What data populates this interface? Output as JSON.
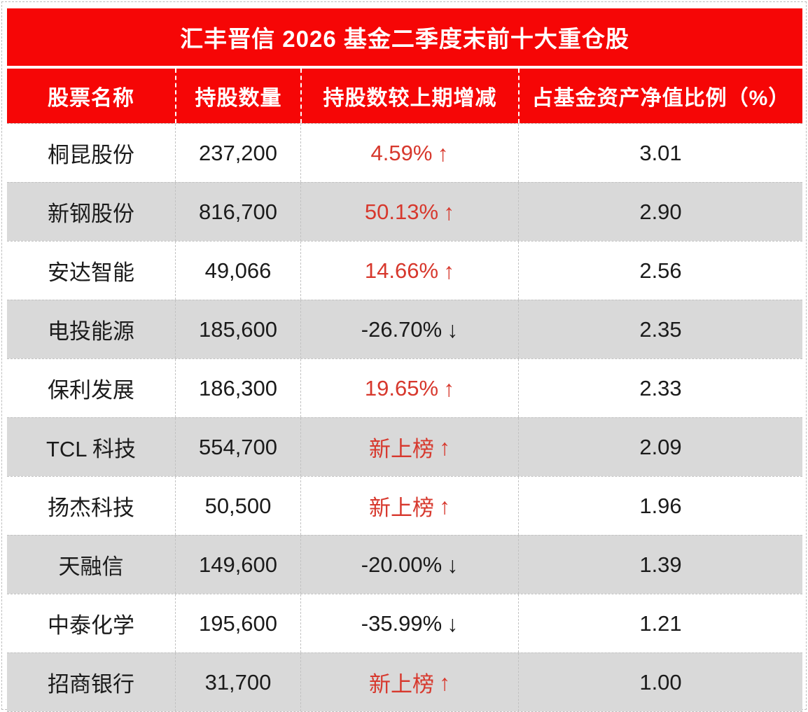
{
  "chart_data": {
    "type": "table",
    "title": "汇丰晋信 2026 基金二季度末前十大重仓股",
    "columns": [
      "股票名称",
      "持股数量",
      "持股数较上期增减",
      "占基金资产净值比例（%）"
    ],
    "rows": [
      {
        "name": "桐昆股份",
        "shares": "237,200",
        "change": "4.59%",
        "direction": "up",
        "ratio": "3.01"
      },
      {
        "name": "新钢股份",
        "shares": "816,700",
        "change": "50.13%",
        "direction": "up",
        "ratio": "2.90"
      },
      {
        "name": "安达智能",
        "shares": "49,066",
        "change": "14.66%",
        "direction": "up",
        "ratio": "2.56"
      },
      {
        "name": "电投能源",
        "shares": "185,600",
        "change": "-26.70%",
        "direction": "down",
        "ratio": "2.35"
      },
      {
        "name": "保利发展",
        "shares": "186,300",
        "change": "19.65%",
        "direction": "up",
        "ratio": "2.33"
      },
      {
        "name": "TCL 科技",
        "shares": "554,700",
        "change": "新上榜",
        "direction": "up",
        "ratio": "2.09"
      },
      {
        "name": "扬杰科技",
        "shares": "50,500",
        "change": "新上榜",
        "direction": "up",
        "ratio": "1.96"
      },
      {
        "name": "天融信",
        "shares": "149,600",
        "change": "-20.00%",
        "direction": "down",
        "ratio": "1.39"
      },
      {
        "name": "中泰化学",
        "shares": "195,600",
        "change": "-35.99%",
        "direction": "down",
        "ratio": "1.21"
      },
      {
        "name": "招商银行",
        "shares": "31,700",
        "change": "新上榜",
        "direction": "up",
        "ratio": "1.00"
      }
    ],
    "layout": {
      "striped": true,
      "stripe_color": "#d9d9d9",
      "header_color": "#f60606",
      "grid": "dashed"
    }
  },
  "icons": {
    "up_arrow": "↑",
    "down_arrow": "↓"
  },
  "colors": {
    "header_red": "#f60606",
    "positive_red": "#d7382d",
    "negative_black": "#1b1b1b",
    "alt_row_gray": "#d9d9d9"
  }
}
